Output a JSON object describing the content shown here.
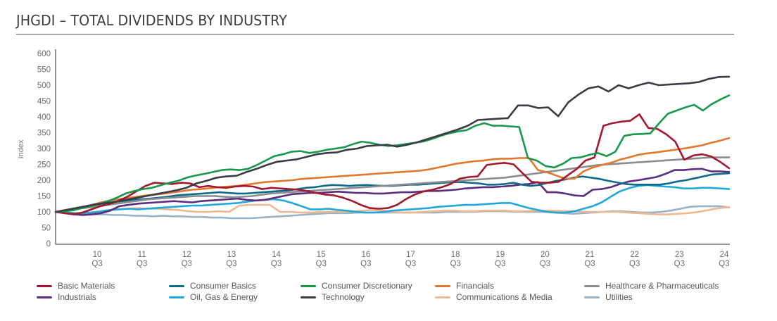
{
  "page": {
    "title": "JHGDI – TOTAL DIVIDENDS BY INDUSTRY"
  },
  "chart_data": {
    "type": "line",
    "title": "JHGDI – TOTAL DIVIDENDS BY INDUSTRY",
    "xlabel": "",
    "ylabel": "Index",
    "ylim": [
      0,
      600
    ],
    "yticks": [
      0,
      50,
      100,
      150,
      200,
      250,
      300,
      350,
      400,
      450,
      500,
      550,
      600
    ],
    "grid": false,
    "legend_position": "bottom",
    "x_start_label": "09 Q4",
    "x_frequency": "quarterly",
    "xtick_labels": [
      {
        "year": "10",
        "quarter": "Q3"
      },
      {
        "year": "11",
        "quarter": "Q3"
      },
      {
        "year": "12",
        "quarter": "Q3"
      },
      {
        "year": "13",
        "quarter": "Q3"
      },
      {
        "year": "14",
        "quarter": "Q3"
      },
      {
        "year": "15",
        "quarter": "Q3"
      },
      {
        "year": "16",
        "quarter": "Q3"
      },
      {
        "year": "17",
        "quarter": "Q3"
      },
      {
        "year": "18",
        "quarter": "Q3"
      },
      {
        "year": "19",
        "quarter": "Q3"
      },
      {
        "year": "20",
        "quarter": "Q3"
      },
      {
        "year": "21",
        "quarter": "Q3"
      },
      {
        "year": "22",
        "quarter": "Q3"
      },
      {
        "year": "23",
        "quarter": "Q3"
      },
      {
        "year": "24",
        "quarter": "Q3"
      }
    ],
    "series": [
      {
        "name": "Basic Materials",
        "color": "#a3182f",
        "values": [
          100,
          96,
          93,
          98,
          108,
          118,
          125,
          135,
          148,
          165,
          182,
          192,
          190,
          188,
          192,
          190,
          178,
          182,
          178,
          176,
          180,
          182,
          180,
          172,
          176,
          174,
          172,
          170,
          166,
          160,
          155,
          152,
          145,
          135,
          122,
          112,
          110,
          112,
          122,
          140,
          155,
          165,
          170,
          178,
          188,
          205,
          210,
          212,
          248,
          252,
          255,
          250,
          222,
          195,
          192,
          192,
          195,
          215,
          235,
          262,
          272,
          372,
          380,
          385,
          388,
          408,
          365,
          362,
          345,
          322,
          265,
          278,
          282,
          275,
          258,
          238
        ]
      },
      {
        "name": "Consumer Basics",
        "color": "#0e6a8b",
        "values": [
          100,
          104,
          108,
          114,
          118,
          122,
          128,
          132,
          135,
          138,
          140,
          142,
          145,
          148,
          152,
          154,
          156,
          158,
          160,
          162,
          160,
          158,
          158,
          160,
          162,
          164,
          166,
          168,
          172,
          176,
          178,
          182,
          185,
          184,
          182,
          184,
          185,
          183,
          182,
          182,
          184,
          186,
          186,
          188,
          190,
          192,
          194,
          194,
          192,
          190,
          186,
          186,
          188,
          192,
          186,
          182,
          185,
          192,
          198,
          202,
          208,
          212,
          208,
          204,
          198,
          193,
          188,
          186,
          186,
          186,
          186,
          190,
          196,
          200,
          206,
          212,
          218,
          220,
          222
        ]
      },
      {
        "name": "Consumer Discretionary",
        "color": "#17994a",
        "values": [
          100,
          102,
          105,
          112,
          118,
          125,
          134,
          145,
          158,
          166,
          172,
          176,
          184,
          192,
          198,
          208,
          215,
          220,
          226,
          232,
          234,
          232,
          236,
          248,
          262,
          276,
          282,
          290,
          292,
          286,
          290,
          296,
          300,
          304,
          314,
          322,
          318,
          312,
          308,
          310,
          314,
          318,
          322,
          330,
          340,
          348,
          354,
          358,
          372,
          380,
          372,
          372,
          370,
          368,
          270,
          262,
          245,
          240,
          252,
          270,
          272,
          280,
          286,
          276,
          290,
          340,
          345,
          346,
          348,
          380,
          410,
          420,
          430,
          438,
          420,
          440,
          455,
          468
        ]
      },
      {
        "name": "Financials",
        "color": "#e2772d",
        "values": [
          100,
          103,
          108,
          114,
          122,
          130,
          136,
          140,
          144,
          148,
          152,
          155,
          158,
          162,
          166,
          170,
          172,
          175,
          178,
          180,
          182,
          186,
          190,
          194,
          196,
          198,
          200,
          204,
          206,
          208,
          210,
          212,
          214,
          216,
          218,
          220,
          222,
          224,
          226,
          228,
          230,
          234,
          240,
          246,
          252,
          256,
          260,
          262,
          266,
          268,
          268,
          270,
          270,
          232,
          225,
          215,
          205,
          205,
          228,
          240,
          248,
          255,
          265,
          272,
          280,
          285,
          288,
          292,
          296,
          300,
          305,
          310,
          318,
          325,
          333
        ]
      },
      {
        "name": "Healthcare & Pharmaceuticals",
        "color": "#8a8c90",
        "values": [
          100,
          103,
          108,
          112,
          116,
          120,
          124,
          128,
          132,
          136,
          140,
          142,
          144,
          146,
          148,
          150,
          150,
          150,
          148,
          146,
          148,
          150,
          154,
          158,
          160,
          162,
          164,
          166,
          168,
          170,
          172,
          174,
          176,
          178,
          180,
          182,
          184,
          186,
          188,
          190,
          192,
          194,
          196,
          198,
          200,
          202,
          204,
          206,
          208,
          212,
          216,
          220,
          224,
          228,
          232,
          236,
          240,
          244,
          248,
          250,
          252,
          254,
          256,
          258,
          260,
          262,
          264,
          266,
          268,
          270,
          272,
          272,
          272
        ]
      },
      {
        "name": "Industrials",
        "color": "#5a2d7e",
        "values": [
          100,
          96,
          92,
          90,
          92,
          96,
          104,
          118,
          122,
          126,
          128,
          130,
          132,
          134,
          132,
          130,
          134,
          136,
          138,
          140,
          142,
          138,
          136,
          138,
          144,
          150,
          156,
          158,
          160,
          160,
          162,
          164,
          162,
          160,
          160,
          158,
          158,
          160,
          162,
          162,
          164,
          166,
          166,
          168,
          170,
          174,
          176,
          178,
          178,
          180,
          182,
          186,
          188,
          194,
          162,
          162,
          158,
          152,
          150,
          170,
          172,
          178,
          188,
          196,
          200,
          205,
          210,
          220,
          232,
          232,
          235,
          236,
          228,
          228,
          226
        ]
      },
      {
        "name": "Oil, Gas & Energy",
        "color": "#1fa8d8",
        "values": [
          100,
          98,
          96,
          96,
          98,
          102,
          106,
          108,
          110,
          108,
          110,
          112,
          114,
          116,
          118,
          120,
          120,
          122,
          124,
          126,
          128,
          132,
          136,
          138,
          140,
          136,
          128,
          118,
          108,
          108,
          110,
          106,
          104,
          100,
          98,
          98,
          100,
          104,
          106,
          108,
          110,
          112,
          116,
          118,
          120,
          122,
          122,
          124,
          126,
          128,
          128,
          120,
          112,
          106,
          100,
          98,
          98,
          102,
          110,
          118,
          130,
          148,
          165,
          175,
          182,
          185,
          182,
          180,
          178,
          174,
          174,
          176,
          176,
          174,
          172
        ]
      },
      {
        "name": "Technology",
        "color": "#3a3b45",
        "values": [
          100,
          106,
          112,
          118,
          124,
          128,
          132,
          138,
          144,
          150,
          156,
          162,
          168,
          176,
          190,
          198,
          208,
          212,
          214,
          226,
          236,
          248,
          258,
          262,
          266,
          274,
          282,
          286,
          288,
          296,
          300,
          308,
          310,
          312,
          306,
          312,
          320,
          330,
          340,
          350,
          360,
          372,
          390,
          392,
          394,
          396,
          436,
          436,
          428,
          430,
          402,
          446,
          470,
          490,
          496,
          480,
          500,
          490,
          500,
          508,
          500,
          502,
          504,
          506,
          510,
          520,
          526,
          527
        ]
      },
      {
        "name": "Communications & Media",
        "color": "#f0b88e",
        "values": [
          100,
          98,
          96,
          98,
          100,
          104,
          108,
          110,
          112,
          110,
          110,
          108,
          106,
          102,
          100,
          100,
          102,
          100,
          120,
          122,
          122,
          122,
          100,
          100,
          98,
          98,
          100,
          100,
          100,
          102,
          104,
          106,
          104,
          100,
          98,
          98,
          100,
          102,
          104,
          104,
          102,
          102,
          104,
          104,
          104,
          102,
          102,
          104,
          104,
          104,
          102,
          102,
          100,
          100,
          100,
          100,
          98,
          96,
          94,
          92,
          92,
          94,
          96,
          100,
          106,
          112,
          115
        ]
      },
      {
        "name": "Utilities",
        "color": "#98b2c8",
        "values": [
          100,
          98,
          96,
          94,
          92,
          92,
          90,
          90,
          88,
          88,
          86,
          88,
          86,
          86,
          84,
          84,
          82,
          82,
          80,
          80,
          80,
          82,
          84,
          86,
          88,
          90,
          92,
          94,
          96,
          96,
          96,
          98,
          98,
          98,
          98,
          98,
          98,
          98,
          98,
          98,
          100,
          100,
          100,
          100,
          102,
          102,
          102,
          100,
          100,
          100,
          100,
          98,
          96,
          94,
          96,
          98,
          100,
          102,
          102,
          100,
          98,
          98,
          100,
          104,
          110,
          116,
          118,
          118,
          118,
          114
        ]
      }
    ]
  },
  "legend": {
    "items": [
      {
        "label": "Basic Materials",
        "color": "#a3182f"
      },
      {
        "label": "Consumer Basics",
        "color": "#0e6a8b"
      },
      {
        "label": "Consumer Discretionary",
        "color": "#17994a"
      },
      {
        "label": "Financials",
        "color": "#e2772d"
      },
      {
        "label": "Healthcare & Pharmaceuticals",
        "color": "#8a8c90"
      },
      {
        "label": "Industrials",
        "color": "#5a2d7e"
      },
      {
        "label": "Oil, Gas & Energy",
        "color": "#1fa8d8"
      },
      {
        "label": "Technology",
        "color": "#3a3b45"
      },
      {
        "label": "Communications & Media",
        "color": "#f0b88e"
      },
      {
        "label": "Utilities",
        "color": "#98b2c8"
      }
    ]
  }
}
